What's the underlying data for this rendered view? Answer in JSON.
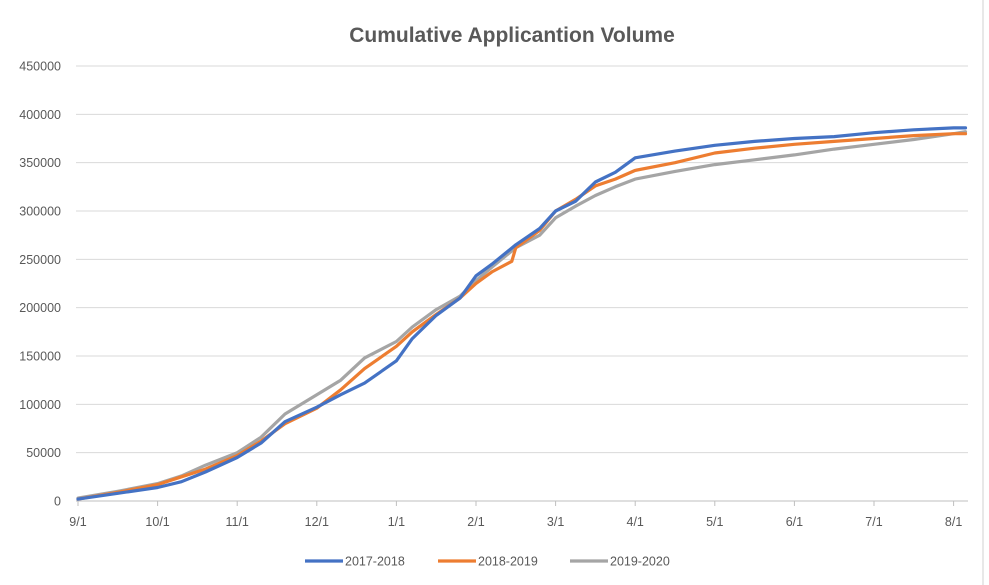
{
  "chart_data": {
    "type": "line",
    "title": "Cumulative Applicantion Volume",
    "xlabel": "",
    "ylabel": "",
    "ylim": [
      0,
      450000
    ],
    "y_ticks": [
      "0",
      "50000",
      "100000",
      "150000",
      "200000",
      "250000",
      "300000",
      "350000",
      "400000",
      "450000"
    ],
    "x_ticks": [
      "9/1",
      "10/1",
      "11/1",
      "12/1",
      "1/1",
      "2/1",
      "3/1",
      "4/1",
      "5/1",
      "6/1",
      "7/1",
      "8/1"
    ],
    "x_month_ticks": [
      0,
      1,
      2,
      3,
      4,
      5,
      6,
      7,
      8,
      9,
      10,
      11
    ],
    "x_range_months": [
      0,
      11.15
    ],
    "grid": "horizontal",
    "legend_position": "bottom",
    "series": [
      {
        "name": "2017-2018",
        "color": "#4472c4",
        "x_month": [
          0,
          0.5,
          1,
          1.3,
          1.6,
          2,
          2.3,
          2.6,
          3,
          3.3,
          3.6,
          4,
          4.2,
          4.5,
          4.8,
          5,
          5.2,
          5.5,
          5.8,
          6,
          6.25,
          6.5,
          6.75,
          7,
          7.5,
          8,
          8.5,
          9,
          9.5,
          10,
          10.5,
          11,
          11.15
        ],
        "values": [
          2000,
          8000,
          14000,
          20000,
          30000,
          45000,
          60000,
          82000,
          97000,
          110000,
          122000,
          145000,
          168000,
          192000,
          210000,
          233000,
          245000,
          265000,
          282000,
          300000,
          310000,
          330000,
          340000,
          355000,
          362000,
          368000,
          372000,
          375000,
          377000,
          381000,
          384000,
          386000,
          386000
        ]
      },
      {
        "name": "2018-2019",
        "color": "#ed7d31",
        "x_month": [
          0,
          0.5,
          1,
          1.3,
          1.6,
          2,
          2.3,
          2.6,
          3,
          3.3,
          3.6,
          4,
          4.2,
          4.5,
          4.8,
          5,
          5.2,
          5.45,
          5.5,
          5.8,
          6,
          6.25,
          6.5,
          6.75,
          7,
          7.5,
          8,
          8.5,
          9,
          9.5,
          10,
          10.5,
          11,
          11.15
        ],
        "values": [
          2000,
          9000,
          17000,
          25000,
          33000,
          47000,
          62000,
          80000,
          96000,
          115000,
          137000,
          160000,
          175000,
          193000,
          210000,
          225000,
          237000,
          248000,
          262000,
          280000,
          300000,
          312000,
          326000,
          333000,
          342000,
          350000,
          360000,
          365000,
          369000,
          372000,
          375000,
          378000,
          380000,
          380000
        ]
      },
      {
        "name": "2019-2020",
        "color": "#a5a5a5",
        "x_month": [
          0,
          0.5,
          1,
          1.3,
          1.6,
          2,
          2.3,
          2.6,
          3,
          3.3,
          3.6,
          4,
          4.2,
          4.5,
          4.8,
          5,
          5.2,
          5.5,
          5.8,
          6,
          6.25,
          6.5,
          6.75,
          7,
          7.5,
          8,
          8.5,
          9,
          9.5,
          10,
          10.5,
          11,
          11.15
        ],
        "values": [
          3000,
          10000,
          18000,
          26000,
          37000,
          50000,
          66000,
          90000,
          110000,
          125000,
          148000,
          165000,
          180000,
          198000,
          212000,
          228000,
          242000,
          262000,
          275000,
          293000,
          305000,
          316000,
          325000,
          333000,
          341000,
          348000,
          353000,
          358000,
          364000,
          369000,
          374000,
          380000,
          382000
        ]
      }
    ]
  }
}
